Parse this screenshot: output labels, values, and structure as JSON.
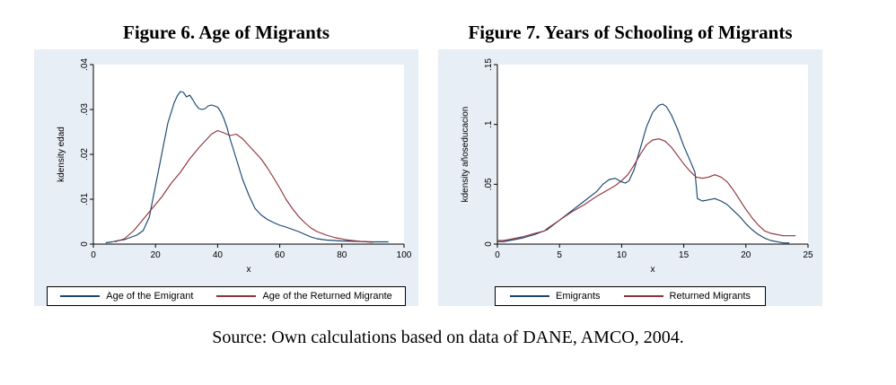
{
  "caption": "Source: Own calculations based on data of DANE, AMCO, 2004.",
  "colors": {
    "chart_background": "#e7eef5",
    "plot_background": "#ffffff",
    "axis": "#000000",
    "emigrant_line": "#1a476f",
    "returned_line": "#90353b"
  },
  "chart_data": [
    {
      "type": "line",
      "title": "Figure 6. Age of Migrants",
      "xlabel": "x",
      "ylabel": "kdensity edad",
      "xlim": [
        0,
        100
      ],
      "ylim": [
        0,
        0.04
      ],
      "xticks": [
        0,
        20,
        40,
        60,
        80,
        100
      ],
      "xtick_labels": [
        "0",
        "20",
        "40",
        "60",
        "80",
        "100"
      ],
      "yticks": [
        0,
        0.01,
        0.02,
        0.03,
        0.04
      ],
      "ytick_labels": [
        "0",
        ".01",
        ".02",
        ".03",
        ".04"
      ],
      "grid": false,
      "legend_position": "bottom",
      "series": [
        {
          "name": "Age of the Emigrant",
          "color": "#1a476f",
          "x": [
            4,
            6,
            8,
            10,
            12,
            14,
            16,
            18,
            20,
            22,
            24,
            26,
            27,
            28,
            29,
            30,
            31,
            32,
            33,
            34,
            35,
            36,
            37,
            38,
            39,
            40,
            41,
            42,
            43,
            44,
            46,
            48,
            50,
            52,
            54,
            56,
            58,
            60,
            62,
            64,
            66,
            68,
            70,
            72,
            75,
            80,
            85,
            90,
            95
          ],
          "y": [
            0.0003,
            0.0005,
            0.0008,
            0.001,
            0.0015,
            0.002,
            0.003,
            0.006,
            0.013,
            0.02,
            0.027,
            0.0315,
            0.033,
            0.034,
            0.0338,
            0.0328,
            0.0332,
            0.0322,
            0.031,
            0.0302,
            0.03,
            0.0302,
            0.0308,
            0.031,
            0.0308,
            0.0305,
            0.0295,
            0.028,
            0.026,
            0.0235,
            0.019,
            0.0145,
            0.011,
            0.008,
            0.0065,
            0.0055,
            0.0048,
            0.0042,
            0.0038,
            0.0033,
            0.0028,
            0.0022,
            0.0016,
            0.0012,
            0.0009,
            0.0007,
            0.0006,
            0.0005,
            0.0005
          ]
        },
        {
          "name": "Age of the Returned Migrante",
          "color": "#90353b",
          "x": [
            7,
            10,
            13,
            16,
            19,
            22,
            25,
            28,
            31,
            34,
            36,
            38,
            40,
            42,
            44,
            46,
            48,
            50,
            52,
            54,
            56,
            58,
            60,
            62,
            64,
            66,
            68,
            70,
            72,
            75,
            78,
            82,
            86,
            90
          ],
          "y": [
            0.0005,
            0.0012,
            0.003,
            0.0055,
            0.008,
            0.0105,
            0.0135,
            0.016,
            0.019,
            0.0215,
            0.023,
            0.0245,
            0.0253,
            0.0248,
            0.0242,
            0.0245,
            0.0235,
            0.022,
            0.0205,
            0.019,
            0.017,
            0.0148,
            0.0125,
            0.01,
            0.008,
            0.0062,
            0.0048,
            0.0036,
            0.0028,
            0.002,
            0.0014,
            0.0009,
            0.0006,
            0.0004
          ]
        }
      ]
    },
    {
      "type": "line",
      "title": "Figure 7. Years of Schooling of Migrants",
      "xlabel": "x",
      "ylabel": "kdensity añoseducacion",
      "xlim": [
        0,
        25
      ],
      "ylim": [
        0,
        0.15
      ],
      "xticks": [
        0,
        5,
        10,
        15,
        20,
        25
      ],
      "xtick_labels": [
        "0",
        "5",
        "10",
        "15",
        "20",
        "25"
      ],
      "yticks": [
        0,
        0.05,
        0.1,
        0.15
      ],
      "ytick_labels": [
        "0",
        ".05",
        ".1",
        ".15"
      ],
      "grid": false,
      "legend_position": "bottom",
      "series": [
        {
          "name": "Emigrants",
          "color": "#1a476f",
          "x": [
            0,
            0.5,
            1,
            2,
            3,
            4,
            5,
            6,
            7,
            8,
            8.5,
            9,
            9.5,
            10,
            10.3,
            10.6,
            11,
            11.5,
            12,
            12.5,
            13,
            13.3,
            13.6,
            14,
            14.5,
            15,
            15.5,
            15.9,
            16.1,
            16.5,
            17,
            17.5,
            18,
            18.5,
            19,
            19.5,
            20,
            20.5,
            21,
            21.5,
            22,
            22.5,
            23,
            23.5
          ],
          "y": [
            0.002,
            0.002,
            0.003,
            0.005,
            0.008,
            0.012,
            0.02,
            0.028,
            0.036,
            0.044,
            0.05,
            0.054,
            0.055,
            0.052,
            0.051,
            0.053,
            0.062,
            0.08,
            0.098,
            0.11,
            0.116,
            0.117,
            0.115,
            0.108,
            0.096,
            0.082,
            0.07,
            0.06,
            0.038,
            0.036,
            0.037,
            0.038,
            0.036,
            0.033,
            0.028,
            0.023,
            0.017,
            0.012,
            0.008,
            0.005,
            0.003,
            0.002,
            0.001,
            0.001
          ]
        },
        {
          "name": "Returned Migrants",
          "color": "#90353b",
          "x": [
            0,
            0.5,
            1,
            2,
            3,
            3.8,
            4,
            5,
            6,
            7,
            8,
            9,
            9.5,
            10,
            10.5,
            11,
            11.5,
            12,
            12.5,
            13,
            13.5,
            14,
            14.5,
            15,
            15.5,
            16,
            16.5,
            17,
            17.5,
            18,
            18.5,
            19,
            19.5,
            20,
            20.5,
            21,
            21.5,
            22,
            22.5,
            23,
            23.5,
            24
          ],
          "y": [
            0.003,
            0.003,
            0.004,
            0.006,
            0.009,
            0.011,
            0.013,
            0.02,
            0.027,
            0.033,
            0.04,
            0.046,
            0.049,
            0.053,
            0.058,
            0.066,
            0.075,
            0.083,
            0.087,
            0.088,
            0.086,
            0.081,
            0.074,
            0.067,
            0.061,
            0.056,
            0.055,
            0.056,
            0.058,
            0.056,
            0.052,
            0.045,
            0.037,
            0.029,
            0.022,
            0.016,
            0.011,
            0.009,
            0.008,
            0.007,
            0.007,
            0.007
          ]
        }
      ]
    }
  ]
}
